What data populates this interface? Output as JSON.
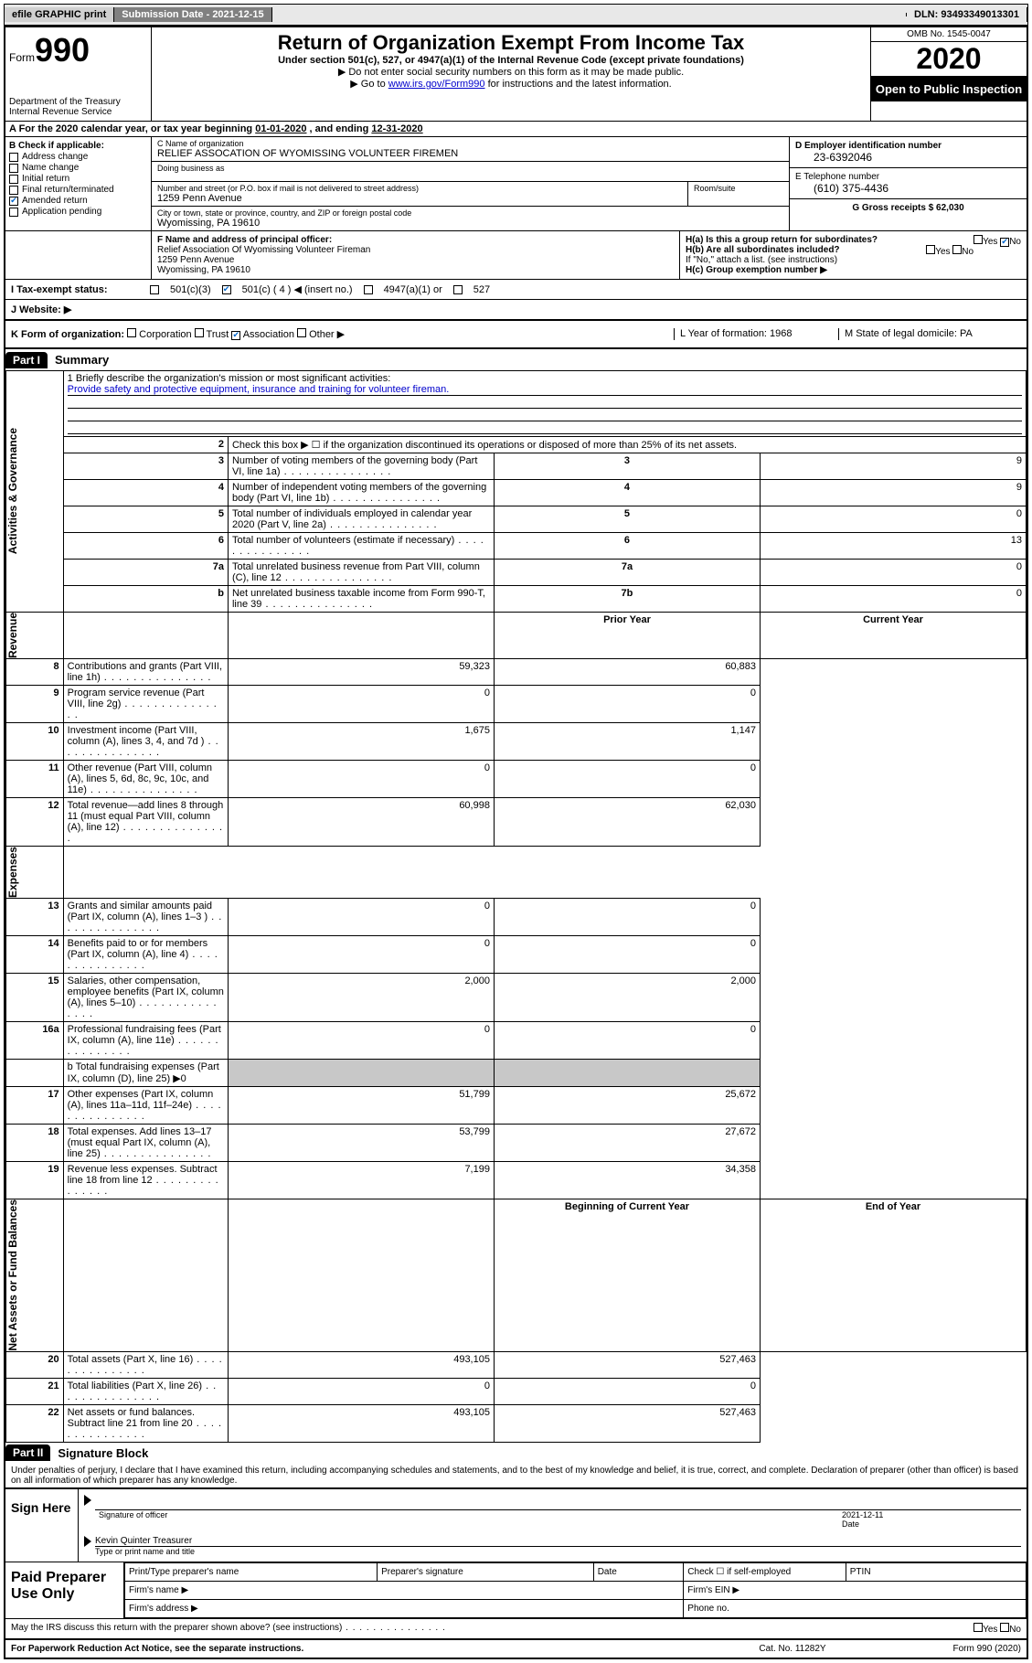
{
  "topbar": {
    "efile_label": "efile GRAPHIC print",
    "submission_label": "Submission Date - 2021-12-15",
    "dln_label": "DLN: 93493349013301"
  },
  "header": {
    "form_word": "Form",
    "form_number": "990",
    "dept": "Department of the Treasury",
    "irs": "Internal Revenue Service",
    "title": "Return of Organization Exempt From Income Tax",
    "subtitle": "Under section 501(c), 527, or 4947(a)(1) of the Internal Revenue Code (except private foundations)",
    "instr1": "▶ Do not enter social security numbers on this form as it may be made public.",
    "instr2_prefix": "▶ Go to ",
    "instr2_link": "www.irs.gov/Form990",
    "instr2_suffix": " for instructions and the latest information.",
    "omb": "OMB No. 1545-0047",
    "year": "2020",
    "badge": "Open to Public Inspection"
  },
  "period": {
    "prefix": "A For the 2020 calendar year, or tax year beginning ",
    "begin": "01-01-2020",
    "mid": " , and ending ",
    "end": "12-31-2020"
  },
  "section_b": {
    "header": "B Check if applicable:",
    "items": [
      {
        "label": "Address change",
        "checked": false
      },
      {
        "label": "Name change",
        "checked": false
      },
      {
        "label": "Initial return",
        "checked": false
      },
      {
        "label": "Final return/terminated",
        "checked": false
      },
      {
        "label": "Amended return",
        "checked": true
      },
      {
        "label": "Application pending",
        "checked": false
      }
    ]
  },
  "section_c": {
    "name_label": "C Name of organization",
    "name": "RELIEF ASSOCATION OF WYOMISSING VOLUNTEER FIREMEN",
    "dba_label": "Doing business as",
    "dba": "",
    "street_label": "Number and street (or P.O. box if mail is not delivered to street address)",
    "room_label": "Room/suite",
    "street": "1259 Penn Avenue",
    "city_label": "City or town, state or province, country, and ZIP or foreign postal code",
    "city": "Wyomissing, PA  19610"
  },
  "section_d": {
    "ein_label": "D Employer identification number",
    "ein": "23-6392046",
    "phone_label": "E Telephone number",
    "phone": "(610) 375-4436",
    "gross_label": "G Gross receipts $ 62,030"
  },
  "section_f": {
    "label": "F Name and address of principal officer:",
    "name": "Relief Association Of Wyomissing Volunteer Fireman",
    "addr1": "1259 Penn Avenue",
    "addr2": "Wyomissing, PA  19610"
  },
  "section_h": {
    "ha_label": "H(a)  Is this a group return for subordinates?",
    "ha_yes": "Yes",
    "ha_no": "No",
    "hb_label": "H(b)  Are all subordinates included?",
    "hb_instr": "If \"No,\" attach a list. (see instructions)",
    "hc_label": "H(c)  Group exemption number ▶"
  },
  "row_i": {
    "label": "I  Tax-exempt status:",
    "opt1": "501(c)(3)",
    "opt2": "501(c) ( 4 ) ◀ (insert no.)",
    "opt3": "4947(a)(1) or",
    "opt4": "527"
  },
  "row_j": {
    "label": "J  Website: ▶"
  },
  "row_k": {
    "label": "K Form of organization:",
    "opts": [
      "Corporation",
      "Trust",
      "Association",
      "Other ▶"
    ],
    "checked_idx": 2,
    "l_label": "L Year of formation: 1968",
    "m_label": "M State of legal domicile: PA"
  },
  "part1": {
    "num": "Part I",
    "title": "Summary",
    "side_ag": "Activities & Governance",
    "side_rev": "Revenue",
    "side_exp": "Expenses",
    "side_na": "Net Assets or Fund Balances",
    "mission_label": "1  Briefly describe the organization's mission or most significant activities:",
    "mission": "Provide safety and protective equipment, insurance and training for volunteer fireman.",
    "line2": "Check this box ▶ ☐  if the organization discontinued its operations or disposed of more than 25% of its net assets.",
    "rows_single": [
      {
        "n": "3",
        "t": "Number of voting members of the governing body (Part VI, line 1a)",
        "a": "3",
        "v": "9"
      },
      {
        "n": "4",
        "t": "Number of independent voting members of the governing body (Part VI, line 1b)",
        "a": "4",
        "v": "9"
      },
      {
        "n": "5",
        "t": "Total number of individuals employed in calendar year 2020 (Part V, line 2a)",
        "a": "5",
        "v": "0"
      },
      {
        "n": "6",
        "t": "Total number of volunteers (estimate if necessary)",
        "a": "6",
        "v": "13"
      },
      {
        "n": "7a",
        "t": "Total unrelated business revenue from Part VIII, column (C), line 12",
        "a": "7a",
        "v": "0"
      },
      {
        "n": "b",
        "t": "Net unrelated business taxable income from Form 990-T, line 39",
        "a": "7b",
        "v": "0"
      }
    ],
    "hdr_prior": "Prior Year",
    "hdr_current": "Current Year",
    "rows_rev": [
      {
        "n": "8",
        "t": "Contributions and grants (Part VIII, line 1h)",
        "p": "59,323",
        "c": "60,883"
      },
      {
        "n": "9",
        "t": "Program service revenue (Part VIII, line 2g)",
        "p": "0",
        "c": "0"
      },
      {
        "n": "10",
        "t": "Investment income (Part VIII, column (A), lines 3, 4, and 7d )",
        "p": "1,675",
        "c": "1,147"
      },
      {
        "n": "11",
        "t": "Other revenue (Part VIII, column (A), lines 5, 6d, 8c, 9c, 10c, and 11e)",
        "p": "0",
        "c": "0"
      },
      {
        "n": "12",
        "t": "Total revenue—add lines 8 through 11 (must equal Part VIII, column (A), line 12)",
        "p": "60,998",
        "c": "62,030"
      }
    ],
    "rows_exp": [
      {
        "n": "13",
        "t": "Grants and similar amounts paid (Part IX, column (A), lines 1–3 )",
        "p": "0",
        "c": "0"
      },
      {
        "n": "14",
        "t": "Benefits paid to or for members (Part IX, column (A), line 4)",
        "p": "0",
        "c": "0"
      },
      {
        "n": "15",
        "t": "Salaries, other compensation, employee benefits (Part IX, column (A), lines 5–10)",
        "p": "2,000",
        "c": "2,000"
      },
      {
        "n": "16a",
        "t": "Professional fundraising fees (Part IX, column (A), line 11e)",
        "p": "0",
        "c": "0"
      }
    ],
    "line16b": "b  Total fundraising expenses (Part IX, column (D), line 25) ▶0",
    "rows_exp2": [
      {
        "n": "17",
        "t": "Other expenses (Part IX, column (A), lines 11a–11d, 11f–24e)",
        "p": "51,799",
        "c": "25,672"
      },
      {
        "n": "18",
        "t": "Total expenses. Add lines 13–17 (must equal Part IX, column (A), line 25)",
        "p": "53,799",
        "c": "27,672"
      },
      {
        "n": "19",
        "t": "Revenue less expenses. Subtract line 18 from line 12",
        "p": "7,199",
        "c": "34,358"
      }
    ],
    "hdr_begin": "Beginning of Current Year",
    "hdr_end": "End of Year",
    "rows_na": [
      {
        "n": "20",
        "t": "Total assets (Part X, line 16)",
        "p": "493,105",
        "c": "527,463"
      },
      {
        "n": "21",
        "t": "Total liabilities (Part X, line 26)",
        "p": "0",
        "c": "0"
      },
      {
        "n": "22",
        "t": "Net assets or fund balances. Subtract line 21 from line 20",
        "p": "493,105",
        "c": "527,463"
      }
    ]
  },
  "part2": {
    "num": "Part II",
    "title": "Signature Block",
    "penalty": "Under penalties of perjury, I declare that I have examined this return, including accompanying schedules and statements, and to the best of my knowledge and belief, it is true, correct, and complete. Declaration of preparer (other than officer) is based on all information of which preparer has any knowledge."
  },
  "sign": {
    "label": "Sign Here",
    "sig_officer": "Signature of officer",
    "date_label": "Date",
    "date": "2021-12-11",
    "name": "Kevin Quinter Treasurer",
    "type_label": "Type or print name and title"
  },
  "prep": {
    "label": "Paid Preparer Use Only",
    "h1": "Print/Type preparer's name",
    "h2": "Preparer's signature",
    "h3": "Date",
    "h4_pre": "Check ☐ if self-employed",
    "h5": "PTIN",
    "firm_name": "Firm's name  ▶",
    "firm_ein": "Firm's EIN ▶",
    "firm_addr": "Firm's address ▶",
    "phone": "Phone no."
  },
  "footer": {
    "discuss": "May the IRS discuss this return with the preparer shown above? (see instructions)",
    "yes": "Yes",
    "no": "No",
    "paperwork": "For Paperwork Reduction Act Notice, see the separate instructions.",
    "cat": "Cat. No. 11282Y",
    "form": "Form 990 (2020)"
  },
  "colors": {
    "link": "#0000cc",
    "check": "#0066cc"
  }
}
